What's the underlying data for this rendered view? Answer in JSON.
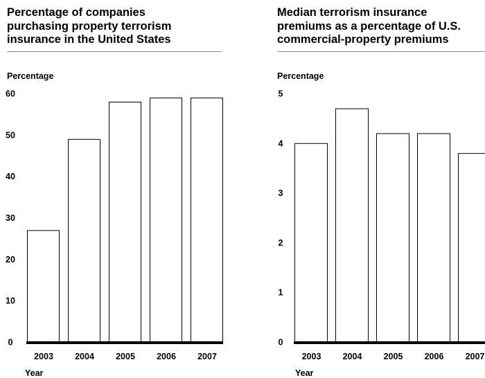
{
  "chart_data": [
    {
      "type": "bar",
      "title": "Percentage of companies\npurchasing property terrorism\ninsurance in the United States",
      "ylabel": "Percentage",
      "xlabel": "Year",
      "categories": [
        "2003",
        "2004",
        "2005",
        "2006",
        "2007"
      ],
      "values": [
        27,
        49,
        58,
        59,
        59
      ],
      "ylim": [
        0,
        60
      ],
      "yticks": [
        "0",
        "10",
        "20",
        "30",
        "40",
        "50",
        "60"
      ],
      "grid": false,
      "bar_fill": "#ffffff",
      "bar_stroke": "#000000"
    },
    {
      "type": "bar",
      "title": "Median terrorism insurance\npremiums as a percentage of U.S.\ncommercial-property premiums",
      "ylabel": "Percentage",
      "xlabel": "Year",
      "categories": [
        "2003",
        "2004",
        "2005",
        "2006",
        "2007"
      ],
      "values": [
        4.0,
        4.7,
        4.2,
        4.2,
        3.8
      ],
      "ylim": [
        0,
        5
      ],
      "yticks": [
        "0",
        "1",
        "2",
        "3",
        "4",
        "5"
      ],
      "grid": false,
      "bar_fill": "#ffffff",
      "bar_stroke": "#000000"
    }
  ]
}
